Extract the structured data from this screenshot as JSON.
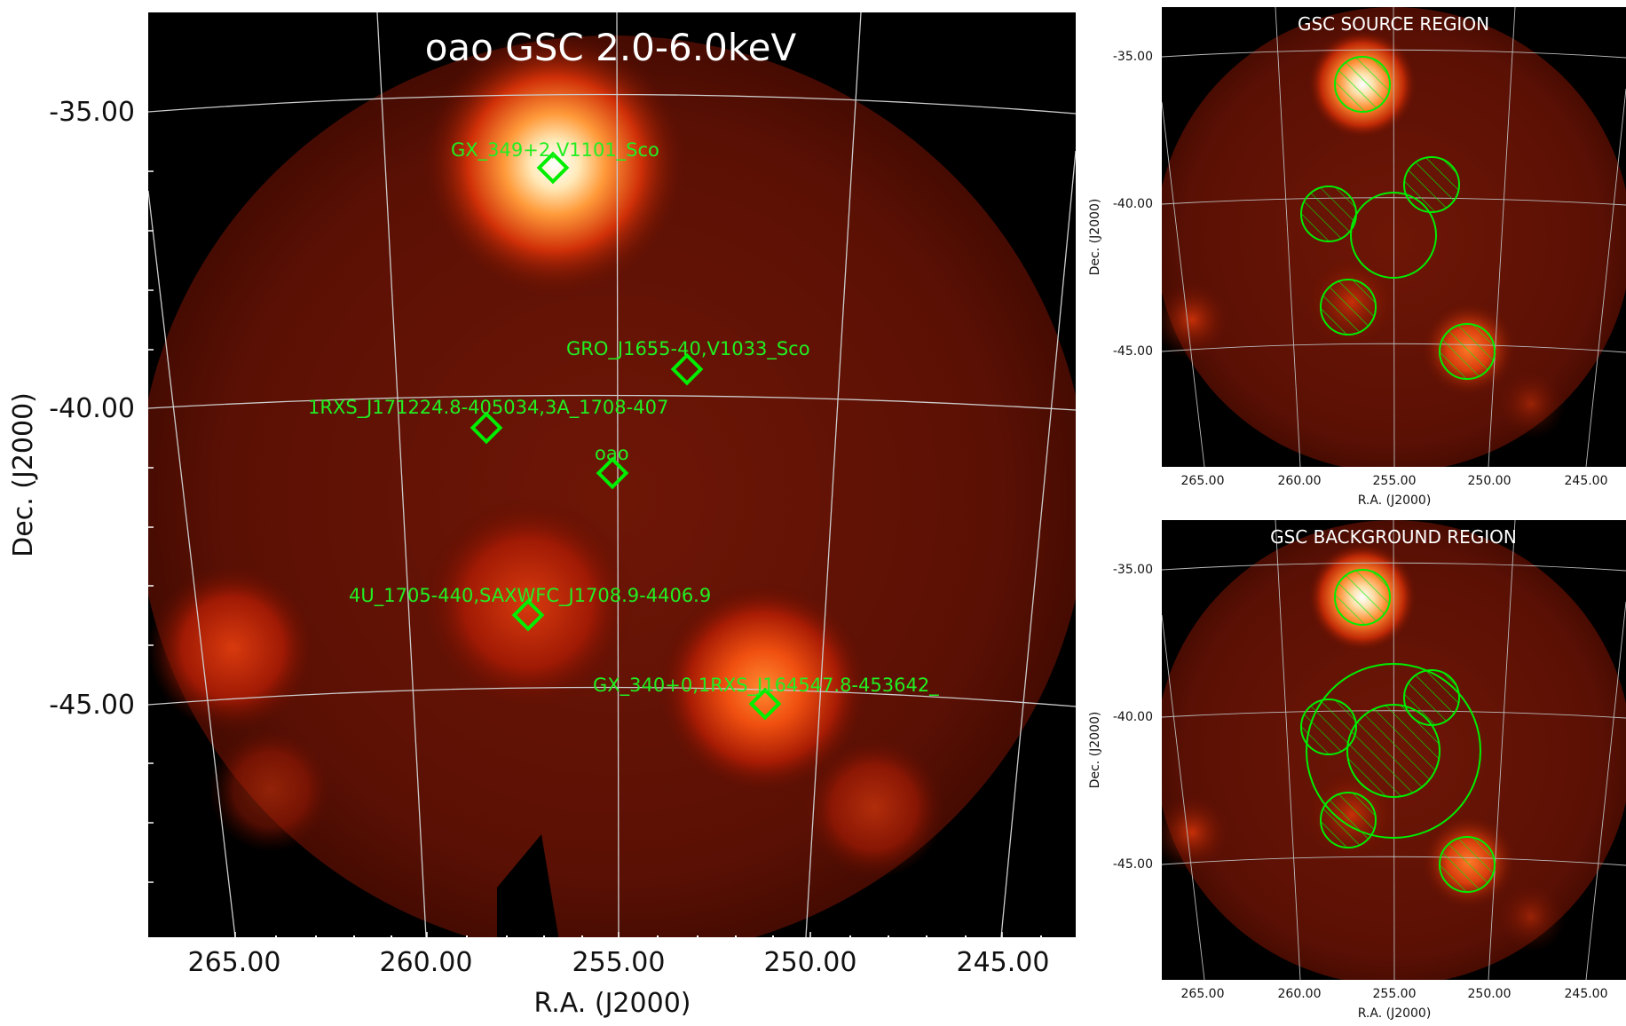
{
  "main": {
    "title": "oao GSC 2.0-6.0keV",
    "xlabel": "R.A. (J2000)",
    "ylabel": "Dec. (J2000)",
    "ra_ticks": [
      "265.00",
      "260.00",
      "255.00",
      "250.00",
      "245.00"
    ],
    "dec_ticks": [
      "-35.00",
      "-40.00",
      "-45.00"
    ],
    "sources": [
      {
        "label": "GX_349+2,V1101_Sco"
      },
      {
        "label": "GRO_J1655-40,V1033_Sco"
      },
      {
        "label": "1RXS_J171224.8-405034,3A_1708-407"
      },
      {
        "label": "oao"
      },
      {
        "label": "4U_1705-440,SAXWFC_J1708.9-4406.9"
      },
      {
        "label": "GX_340+0,1RXS_J164547.8-453642_"
      }
    ]
  },
  "source_region": {
    "title": "GSC SOURCE REGION",
    "xlabel": "R.A. (J2000)",
    "ylabel": "Dec. (J2000)",
    "ra_ticks": [
      "265.00",
      "260.00",
      "255.00",
      "250.00",
      "245.00"
    ],
    "dec_ticks": [
      "-35.00",
      "-40.00",
      "-45.00"
    ]
  },
  "background_region": {
    "title": "GSC BACKGROUND REGION",
    "xlabel": "R.A. (J2000)",
    "ylabel": "Dec. (J2000)",
    "ra_ticks": [
      "265.00",
      "260.00",
      "255.00",
      "250.00",
      "245.00"
    ],
    "dec_ticks": [
      "-35.00",
      "-40.00",
      "-45.00"
    ]
  },
  "colors": {
    "marker": "#00ee00",
    "label": "#22ee22",
    "grid": "#cccccc",
    "background": "#000000"
  }
}
